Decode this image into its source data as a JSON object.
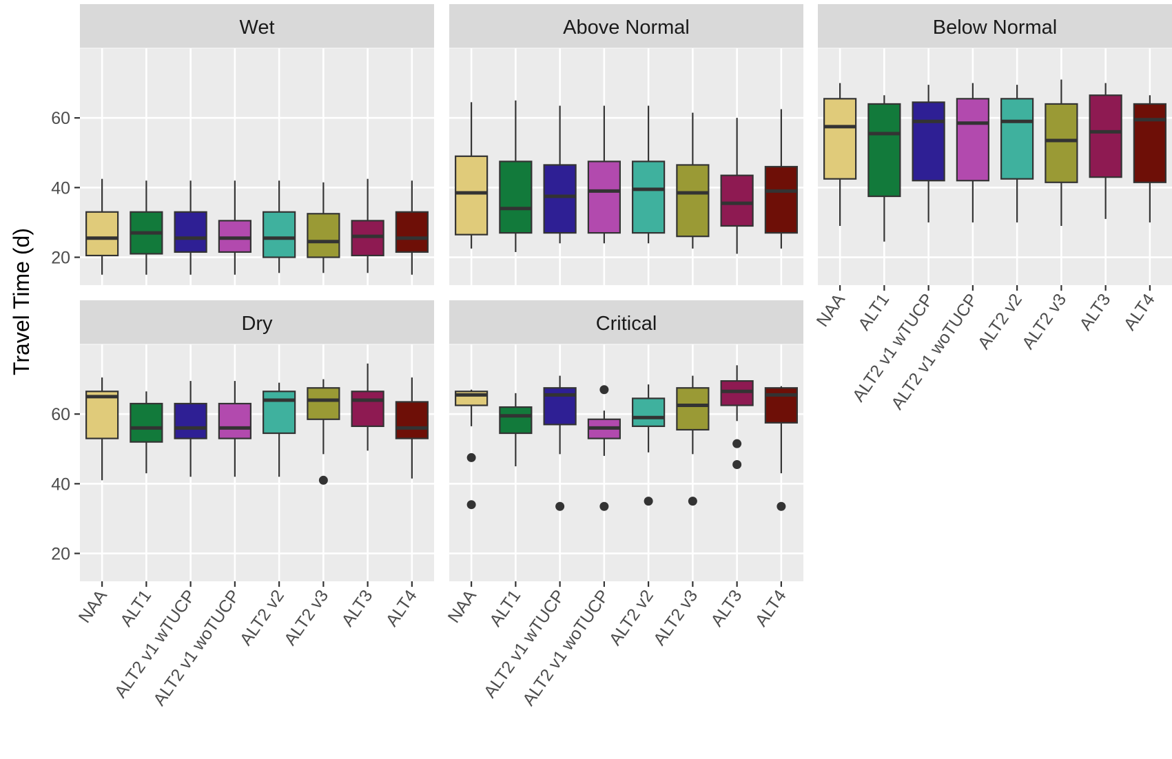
{
  "chart_data": {
    "type": "box",
    "ylabel": "Travel Time (d)",
    "xlabel": "",
    "ylim": [
      12,
      80
    ],
    "yticks": [
      20,
      40,
      60
    ],
    "grid": true,
    "categories": [
      "NAA",
      "ALT1",
      "ALT2 v1 wTUCP",
      "ALT2 v1 woTUCP",
      "ALT2 v2",
      "ALT2 v3",
      "ALT3",
      "ALT4"
    ],
    "colors": [
      "#E0CB7A",
      "#127A3B",
      "#2E1F94",
      "#B24AAE",
      "#3FB19E",
      "#9A9A35",
      "#8E1A52",
      "#6E0F07"
    ],
    "panels": [
      {
        "name": "Wet",
        "boxes": [
          {
            "min": 15,
            "q1": 20.5,
            "median": 25.5,
            "q3": 33,
            "max": 42.5,
            "outliers": []
          },
          {
            "min": 15,
            "q1": 21,
            "median": 27,
            "q3": 33,
            "max": 42,
            "outliers": []
          },
          {
            "min": 15,
            "q1": 21.5,
            "median": 25.5,
            "q3": 33,
            "max": 42,
            "outliers": []
          },
          {
            "min": 15,
            "q1": 21.5,
            "median": 25.5,
            "q3": 30.5,
            "max": 42,
            "outliers": []
          },
          {
            "min": 15.5,
            "q1": 20,
            "median": 25.5,
            "q3": 33,
            "max": 42,
            "outliers": []
          },
          {
            "min": 15.5,
            "q1": 20,
            "median": 24.5,
            "q3": 32.5,
            "max": 41.5,
            "outliers": []
          },
          {
            "min": 15.5,
            "q1": 20.5,
            "median": 26,
            "q3": 30.5,
            "max": 42.5,
            "outliers": []
          },
          {
            "min": 15,
            "q1": 21.5,
            "median": 25.5,
            "q3": 33,
            "max": 42,
            "outliers": []
          }
        ]
      },
      {
        "name": "Above Normal",
        "boxes": [
          {
            "min": 22.5,
            "q1": 26.5,
            "median": 38.5,
            "q3": 49,
            "max": 64.5,
            "outliers": []
          },
          {
            "min": 21.5,
            "q1": 27,
            "median": 34,
            "q3": 47.5,
            "max": 65,
            "outliers": []
          },
          {
            "min": 24,
            "q1": 27,
            "median": 37.5,
            "q3": 46.5,
            "max": 63.5,
            "outliers": []
          },
          {
            "min": 24,
            "q1": 27,
            "median": 39,
            "q3": 47.5,
            "max": 63.5,
            "outliers": []
          },
          {
            "min": 24,
            "q1": 27,
            "median": 39.5,
            "q3": 47.5,
            "max": 63.5,
            "outliers": []
          },
          {
            "min": 22.5,
            "q1": 26,
            "median": 38.5,
            "q3": 46.5,
            "max": 61.5,
            "outliers": []
          },
          {
            "min": 21,
            "q1": 29,
            "median": 35.5,
            "q3": 43.5,
            "max": 60,
            "outliers": []
          },
          {
            "min": 22.5,
            "q1": 27,
            "median": 39,
            "q3": 46,
            "max": 62.5,
            "outliers": []
          }
        ]
      },
      {
        "name": "Below Normal",
        "boxes": [
          {
            "min": 29,
            "q1": 42.5,
            "median": 57.5,
            "q3": 65.5,
            "max": 70,
            "outliers": []
          },
          {
            "min": 24.5,
            "q1": 37.5,
            "median": 55.5,
            "q3": 64,
            "max": 66.5,
            "outliers": []
          },
          {
            "min": 30,
            "q1": 42,
            "median": 59,
            "q3": 64.5,
            "max": 69.5,
            "outliers": []
          },
          {
            "min": 30,
            "q1": 42,
            "median": 58.5,
            "q3": 65.5,
            "max": 70,
            "outliers": []
          },
          {
            "min": 30,
            "q1": 42.5,
            "median": 59,
            "q3": 65.5,
            "max": 69.5,
            "outliers": []
          },
          {
            "min": 29,
            "q1": 41.5,
            "median": 53.5,
            "q3": 64,
            "max": 71,
            "outliers": []
          },
          {
            "min": 31,
            "q1": 43,
            "median": 56,
            "q3": 66.5,
            "max": 70,
            "outliers": []
          },
          {
            "min": 30,
            "q1": 41.5,
            "median": 59.5,
            "q3": 64,
            "max": 66.5,
            "outliers": []
          }
        ]
      },
      {
        "name": "Dry",
        "boxes": [
          {
            "min": 41,
            "q1": 53,
            "median": 65,
            "q3": 66.5,
            "max": 70.5,
            "outliers": []
          },
          {
            "min": 43,
            "q1": 52,
            "median": 56,
            "q3": 63,
            "max": 66.5,
            "outliers": []
          },
          {
            "min": 42,
            "q1": 53,
            "median": 56,
            "q3": 63,
            "max": 69.5,
            "outliers": []
          },
          {
            "min": 42,
            "q1": 53,
            "median": 56,
            "q3": 63,
            "max": 69.5,
            "outliers": []
          },
          {
            "min": 42,
            "q1": 54.5,
            "median": 64,
            "q3": 66.5,
            "max": 69,
            "outliers": []
          },
          {
            "min": 48.5,
            "q1": 58.5,
            "median": 64,
            "q3": 67.5,
            "max": 70,
            "outliers": [
              41
            ]
          },
          {
            "min": 49.5,
            "q1": 56.5,
            "median": 64,
            "q3": 66.5,
            "max": 74.5,
            "outliers": []
          },
          {
            "min": 41.5,
            "q1": 53,
            "median": 56,
            "q3": 63.5,
            "max": 70.5,
            "outliers": []
          }
        ]
      },
      {
        "name": "Critical",
        "boxes": [
          {
            "min": 56.5,
            "q1": 62.5,
            "median": 65.5,
            "q3": 66.5,
            "max": 67,
            "outliers": [
              47.5,
              34
            ]
          },
          {
            "min": 45,
            "q1": 54.5,
            "median": 59.5,
            "q3": 62,
            "max": 66,
            "outliers": []
          },
          {
            "min": 48.5,
            "q1": 57,
            "median": 65.5,
            "q3": 67.5,
            "max": 71,
            "outliers": [
              33.5
            ]
          },
          {
            "min": 48,
            "q1": 53,
            "median": 56,
            "q3": 58.5,
            "max": 61,
            "outliers": [
              67,
              33.5
            ]
          },
          {
            "min": 49,
            "q1": 56.5,
            "median": 59,
            "q3": 64.5,
            "max": 68.5,
            "outliers": [
              35
            ]
          },
          {
            "min": 48.5,
            "q1": 55.5,
            "median": 62.5,
            "q3": 67.5,
            "max": 71,
            "outliers": [
              35
            ]
          },
          {
            "min": 58,
            "q1": 62.5,
            "median": 66.5,
            "q3": 69.5,
            "max": 74,
            "outliers": [
              51.5,
              45.5
            ]
          },
          {
            "min": 43,
            "q1": 57.5,
            "median": 65.5,
            "q3": 67.5,
            "max": 68,
            "outliers": [
              33.5
            ]
          }
        ]
      }
    ]
  }
}
